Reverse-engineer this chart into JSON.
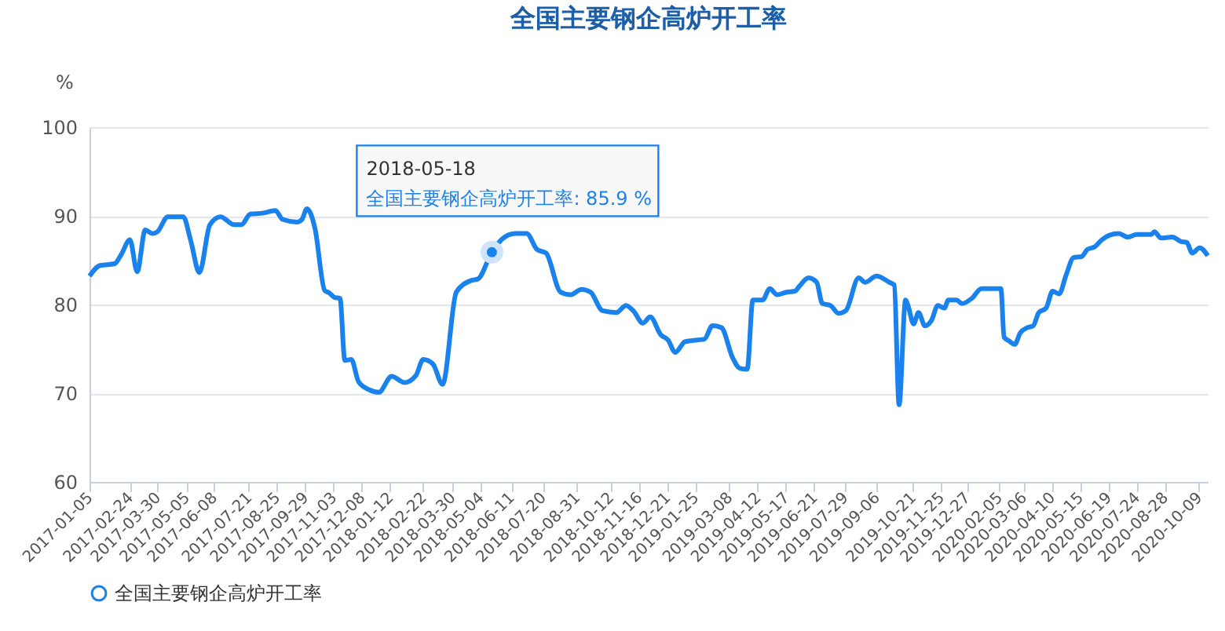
{
  "chart_data": {
    "type": "line",
    "title": "全国主要钢企高炉开工率",
    "ylabel": "%",
    "x": [
      "2017-01-05",
      "2017-01-18",
      "2017-02-05",
      "2017-02-13",
      "2017-02-24",
      "2017-03-05",
      "2017-03-15",
      "2017-03-24",
      "2017-03-30",
      "2017-04-12",
      "2017-05-01",
      "2017-05-10",
      "2017-05-21",
      "2017-06-03",
      "2017-06-16",
      "2017-07-03",
      "2017-07-12",
      "2017-07-23",
      "2017-08-07",
      "2017-08-23",
      "2017-09-01",
      "2017-09-19",
      "2017-09-25",
      "2017-10-01",
      "2017-10-11",
      "2017-10-23",
      "2017-10-29",
      "2017-11-04",
      "2017-11-11",
      "2017-11-17",
      "2017-11-25",
      "2017-12-04",
      "2017-12-17",
      "2017-12-29",
      "2018-01-14",
      "2018-01-30",
      "2018-02-13",
      "2018-02-22",
      "2018-03-06",
      "2018-03-18",
      "2018-04-04",
      "2018-04-22",
      "2018-05-01",
      "2018-05-18",
      "2018-05-31",
      "2018-06-16",
      "2018-06-30",
      "2018-07-13",
      "2018-07-24",
      "2018-08-11",
      "2018-08-23",
      "2018-09-06",
      "2018-09-17",
      "2018-10-02",
      "2018-10-19",
      "2018-10-31",
      "2018-11-09",
      "2018-11-21",
      "2018-11-30",
      "2018-12-13",
      "2018-12-22",
      "2018-12-31",
      "2019-01-12",
      "2019-01-27",
      "2019-02-05",
      "2019-02-15",
      "2019-02-26",
      "2019-03-12",
      "2019-03-21",
      "2019-03-30",
      "2019-04-06",
      "2019-04-18",
      "2019-04-27",
      "2019-05-06",
      "2019-05-18",
      "2019-05-28",
      "2019-06-02",
      "2019-06-14",
      "2019-06-24",
      "2019-07-01",
      "2019-07-11",
      "2019-07-21",
      "2019-07-30",
      "2019-08-15",
      "2019-08-23",
      "2019-09-06",
      "2019-09-22",
      "2019-09-28",
      "2019-10-04",
      "2019-10-12",
      "2019-10-15",
      "2019-10-22",
      "2019-10-28",
      "2019-11-05",
      "2019-11-13",
      "2019-11-21",
      "2019-11-29",
      "2019-12-04",
      "2019-12-14",
      "2019-12-21",
      "2020-01-02",
      "2020-01-14",
      "2020-02-07",
      "2020-02-11",
      "2020-02-17",
      "2020-02-24",
      "2020-03-02",
      "2020-03-11",
      "2020-03-18",
      "2020-03-25",
      "2020-04-03",
      "2020-04-11",
      "2020-04-19",
      "2020-04-28",
      "2020-05-07",
      "2020-05-17",
      "2020-05-24",
      "2020-06-02",
      "2020-06-11",
      "2020-06-20",
      "2020-07-02",
      "2020-07-13",
      "2020-07-24",
      "2020-08-11",
      "2020-08-15",
      "2020-08-23",
      "2020-09-06",
      "2020-09-17",
      "2020-09-24",
      "2020-10-01",
      "2020-10-10",
      "2020-10-20"
    ],
    "series": [
      {
        "name": "全国主要钢企高炉开工率",
        "color": "#1a82ec",
        "values": [
          83.2,
          84.4,
          84.6,
          85.6,
          87.3,
          83.7,
          88.4,
          88.0,
          88.2,
          89.9,
          89.9,
          87.3,
          83.6,
          89.0,
          89.9,
          89.0,
          89.0,
          90.2,
          90.3,
          90.6,
          89.6,
          89.3,
          89.6,
          90.8,
          88.6,
          81.6,
          81.3,
          80.8,
          80.7,
          73.7,
          73.8,
          71.3,
          70.4,
          70.1,
          71.9,
          71.2,
          72.0,
          73.8,
          73.3,
          71.0,
          81.4,
          82.7,
          82.9,
          85.9,
          87.4,
          88.0,
          88.0,
          86.2,
          85.8,
          81.4,
          81.1,
          81.7,
          81.4,
          79.3,
          79.1,
          79.9,
          79.3,
          77.9,
          78.6,
          76.6,
          76.0,
          74.6,
          75.8,
          76.0,
          76.1,
          77.6,
          77.4,
          74.0,
          72.8,
          72.7,
          80.5,
          80.5,
          81.8,
          81.1,
          81.4,
          81.5,
          82.0,
          83.0,
          82.5,
          80.1,
          79.9,
          79.0,
          79.3,
          83.0,
          82.5,
          83.2,
          82.5,
          82.2,
          68.7,
          80.5,
          79.9,
          77.8,
          79.1,
          77.6,
          78.2,
          79.9,
          79.6,
          80.5,
          80.5,
          80.1,
          80.7,
          81.8,
          81.8,
          76.3,
          75.9,
          75.5,
          76.8,
          77.4,
          77.6,
          79.1,
          79.6,
          81.5,
          81.2,
          83.4,
          85.3,
          85.4,
          86.2,
          86.5,
          87.3,
          87.8,
          88.0,
          87.6,
          87.9,
          87.9,
          88.2,
          87.5,
          87.6,
          87.1,
          87.0,
          85.8,
          86.4,
          85.5
        ]
      }
    ],
    "xlim": [
      "2017-01-05",
      "2020-10-20"
    ],
    "xticks": [
      "2017-01-05",
      "2017-02-24",
      "2017-03-30",
      "2017-05-05",
      "2017-06-08",
      "2017-07-21",
      "2017-08-25",
      "2017-09-29",
      "2017-11-03",
      "2017-12-08",
      "2018-01-12",
      "2018-02-22",
      "2018-03-30",
      "2018-05-04",
      "2018-06-11",
      "2018-07-20",
      "2018-08-31",
      "2018-10-12",
      "2018-11-16",
      "2018-12-21",
      "2019-01-25",
      "2019-03-08",
      "2019-04-12",
      "2019-05-17",
      "2019-06-21",
      "2019-07-29",
      "2019-09-06",
      "2019-10-21",
      "2019-11-25",
      "2019-12-27",
      "2020-02-05",
      "2020-03-06",
      "2020-04-10",
      "2020-05-15",
      "2020-06-19",
      "2020-07-24",
      "2020-08-28",
      "2020-10-09"
    ],
    "ylim": [
      60,
      100
    ],
    "yticks": [
      60,
      70,
      80,
      90,
      100
    ],
    "grid": "y",
    "legend": "bottom",
    "annotations": [
      {
        "text": "2018-05-18\n全国主要钢企高炉开工率: 85.9 %",
        "x": "2018-05-18",
        "y": 85.9
      }
    ]
  }
}
